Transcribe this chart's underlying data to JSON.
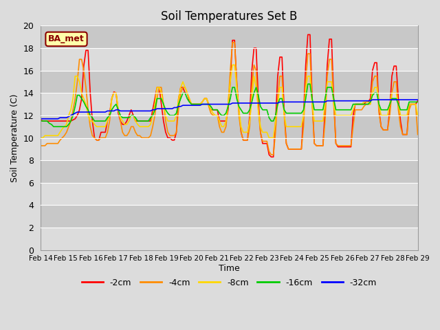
{
  "title": "Soil Temperatures Set B",
  "xlabel": "Time",
  "ylabel": "Soil Temperature (C)",
  "ylim": [
    0,
    20
  ],
  "yticks": [
    0,
    2,
    4,
    6,
    8,
    10,
    12,
    14,
    16,
    18,
    20
  ],
  "x_labels": [
    "Feb 14",
    "Feb 15",
    "Feb 16",
    "Feb 17",
    "Feb 18",
    "Feb 19",
    "Feb 20",
    "Feb 21",
    "Feb 22",
    "Feb 23",
    "Feb 24",
    "Feb 25",
    "Feb 26",
    "Feb 27",
    "Feb 28",
    "Feb 29"
  ],
  "annotation_text": "BA_met",
  "annotation_color": "#8B0000",
  "annotation_bg": "#FFFFAA",
  "colors": {
    "-2cm": "#FF0000",
    "-4cm": "#FF8C00",
    "-8cm": "#FFD700",
    "-16cm": "#00CC00",
    "-32cm": "#0000FF"
  },
  "legend_labels": [
    "-2cm",
    "-4cm",
    "-8cm",
    "-16cm",
    "-32cm"
  ],
  "bg_band_colors": [
    "#DCDCDC",
    "#C8C8C8"
  ],
  "data": {
    "-2cm": [
      11.6,
      11.5,
      11.5,
      11.5,
      11.5,
      11.5,
      11.5,
      11.5,
      11.5,
      11.5,
      11.5,
      11.5,
      11.5,
      11.5,
      11.5,
      11.6,
      11.7,
      12.0,
      12.5,
      13.5,
      16.4,
      17.8,
      17.8,
      14.0,
      11.5,
      10.0,
      9.8,
      9.8,
      10.5,
      10.5,
      10.5,
      11.5,
      12.2,
      13.5,
      14.1,
      14.0,
      12.2,
      11.5,
      11.2,
      11.2,
      11.5,
      12.0,
      12.5,
      12.0,
      11.5,
      11.5,
      11.5,
      11.5,
      11.5,
      11.5,
      11.5,
      11.5,
      12.5,
      13.5,
      14.5,
      14.5,
      13.0,
      11.5,
      10.5,
      10.0,
      10.0,
      9.8,
      9.8,
      10.5,
      13.5,
      14.5,
      14.5,
      14.0,
      14.0,
      13.3,
      13.0,
      13.0,
      13.0,
      13.0,
      13.0,
      13.2,
      13.5,
      13.5,
      13.0,
      12.5,
      12.5,
      12.5,
      12.5,
      11.5,
      11.5,
      11.5,
      11.5,
      12.5,
      15.0,
      18.7,
      18.7,
      15.0,
      12.5,
      10.5,
      9.8,
      9.8,
      9.8,
      12.0,
      16.0,
      18.0,
      18.0,
      13.5,
      10.5,
      9.5,
      9.5,
      9.5,
      8.5,
      8.3,
      8.3,
      11.5,
      15.5,
      17.2,
      17.2,
      12.5,
      9.5,
      9.0,
      9.0,
      9.0,
      9.0,
      9.0,
      9.0,
      9.0,
      12.0,
      16.5,
      19.2,
      19.2,
      13.5,
      9.5,
      9.3,
      9.3,
      9.3,
      9.3,
      12.5,
      16.5,
      18.8,
      18.8,
      13.5,
      9.5,
      9.2,
      9.2,
      9.2,
      9.2,
      9.2,
      9.2,
      9.2,
      12.0,
      13.0,
      13.0,
      13.0,
      13.0,
      13.0,
      13.2,
      13.2,
      13.5,
      16.0,
      16.7,
      16.7,
      12.5,
      11.0,
      10.7,
      10.7,
      10.7,
      12.5,
      15.5,
      16.4,
      16.4,
      13.5,
      11.5,
      10.3,
      10.3,
      10.3,
      13.0,
      13.0,
      13.0,
      13.0,
      13.3
    ],
    "-4cm": [
      9.3,
      9.3,
      9.3,
      9.5,
      9.5,
      9.5,
      9.5,
      9.5,
      9.5,
      9.8,
      10.0,
      10.2,
      10.5,
      11.0,
      11.5,
      12.5,
      13.5,
      15.0,
      17.0,
      17.0,
      16.0,
      14.5,
      12.5,
      11.0,
      10.2,
      10.0,
      9.8,
      9.8,
      10.0,
      10.0,
      10.0,
      10.5,
      11.5,
      13.5,
      14.0,
      14.0,
      12.5,
      11.5,
      10.5,
      10.2,
      10.2,
      10.5,
      11.0,
      11.0,
      10.5,
      10.2,
      10.2,
      10.0,
      10.0,
      10.0,
      10.0,
      10.2,
      11.0,
      12.0,
      13.5,
      14.5,
      14.5,
      13.0,
      11.5,
      10.5,
      10.2,
      10.2,
      10.2,
      10.5,
      12.5,
      14.0,
      14.5,
      14.5,
      14.0,
      13.5,
      13.0,
      13.0,
      13.0,
      13.0,
      13.0,
      13.2,
      13.5,
      13.5,
      12.8,
      12.2,
      12.0,
      12.0,
      12.0,
      11.0,
      10.5,
      10.5,
      11.0,
      13.0,
      16.0,
      18.5,
      18.5,
      15.0,
      12.0,
      10.5,
      9.8,
      9.8,
      9.8,
      11.0,
      14.5,
      16.5,
      16.0,
      12.5,
      10.5,
      9.7,
      9.7,
      9.7,
      8.8,
      8.5,
      8.5,
      10.5,
      13.5,
      15.5,
      15.5,
      12.0,
      9.5,
      9.0,
      9.0,
      9.0,
      9.0,
      9.0,
      9.0,
      9.0,
      11.0,
      15.0,
      17.5,
      17.5,
      13.0,
      9.5,
      9.3,
      9.3,
      9.3,
      9.3,
      11.5,
      15.5,
      17.0,
      17.0,
      13.0,
      9.5,
      9.3,
      9.3,
      9.3,
      9.3,
      9.3,
      9.3,
      9.3,
      11.0,
      12.5,
      12.5,
      12.5,
      12.5,
      12.8,
      13.0,
      13.0,
      13.0,
      15.0,
      15.5,
      15.5,
      12.2,
      11.0,
      10.7,
      10.7,
      10.7,
      12.0,
      14.0,
      15.0,
      15.0,
      12.5,
      11.0,
      10.3,
      10.3,
      10.3,
      12.5,
      13.0,
      13.0,
      13.0,
      10.3
    ],
    "-8cm": [
      10.0,
      10.0,
      10.2,
      10.2,
      10.2,
      10.2,
      10.2,
      10.2,
      10.2,
      10.5,
      10.8,
      11.0,
      11.2,
      12.0,
      12.5,
      13.5,
      15.5,
      15.5,
      15.0,
      14.0,
      13.5,
      13.0,
      12.0,
      11.5,
      11.5,
      11.2,
      11.0,
      11.0,
      11.0,
      11.0,
      11.0,
      11.5,
      12.0,
      13.5,
      14.0,
      14.0,
      12.5,
      11.8,
      11.5,
      11.2,
      11.2,
      11.5,
      12.0,
      12.0,
      11.5,
      11.2,
      11.0,
      11.0,
      11.0,
      11.0,
      11.0,
      11.2,
      12.0,
      13.0,
      14.5,
      14.5,
      14.0,
      13.0,
      12.0,
      11.5,
      11.5,
      11.5,
      11.5,
      12.0,
      13.5,
      14.5,
      15.0,
      14.5,
      14.0,
      13.5,
      13.0,
      13.0,
      13.0,
      13.0,
      13.0,
      13.2,
      13.5,
      13.5,
      13.0,
      12.5,
      12.2,
      12.0,
      12.0,
      11.5,
      11.0,
      11.0,
      11.5,
      13.0,
      15.0,
      16.5,
      16.5,
      14.5,
      12.5,
      11.0,
      10.5,
      10.5,
      10.5,
      11.5,
      13.5,
      15.5,
      14.5,
      12.5,
      11.0,
      10.5,
      10.5,
      10.5,
      10.0,
      10.0,
      10.0,
      11.5,
      13.0,
      14.5,
      14.5,
      12.0,
      11.0,
      11.0,
      11.0,
      11.0,
      11.0,
      11.0,
      11.0,
      11.0,
      12.0,
      14.5,
      15.5,
      15.5,
      13.0,
      11.5,
      11.5,
      11.5,
      11.5,
      11.5,
      13.0,
      15.0,
      15.0,
      15.0,
      13.0,
      12.0,
      12.0,
      12.0,
      12.0,
      12.0,
      12.0,
      12.0,
      12.0,
      12.5,
      13.0,
      13.0,
      13.0,
      13.0,
      13.2,
      13.2,
      13.2,
      13.0,
      14.0,
      14.5,
      14.5,
      13.0,
      12.0,
      12.0,
      12.0,
      12.0,
      13.0,
      14.0,
      14.0,
      14.0,
      13.0,
      12.0,
      12.0,
      12.0,
      12.0,
      13.0,
      13.0,
      13.0,
      13.0,
      12.0
    ],
    "-16cm": [
      11.5,
      11.5,
      11.5,
      11.5,
      11.3,
      11.2,
      11.0,
      11.0,
      11.0,
      11.0,
      11.0,
      11.0,
      11.0,
      11.2,
      11.5,
      12.0,
      12.8,
      13.8,
      13.8,
      13.5,
      13.2,
      12.8,
      12.5,
      12.0,
      11.8,
      11.5,
      11.5,
      11.5,
      11.5,
      11.5,
      11.5,
      11.8,
      12.0,
      12.5,
      12.8,
      13.0,
      12.5,
      12.0,
      11.8,
      11.8,
      11.8,
      11.8,
      12.0,
      12.0,
      11.8,
      11.5,
      11.5,
      11.5,
      11.5,
      11.5,
      11.5,
      11.8,
      12.0,
      12.5,
      13.5,
      13.5,
      13.5,
      13.0,
      12.5,
      12.2,
      12.0,
      12.0,
      12.0,
      12.2,
      13.0,
      13.5,
      14.0,
      14.0,
      13.5,
      13.2,
      13.0,
      13.0,
      13.0,
      13.0,
      13.0,
      13.0,
      13.0,
      13.0,
      13.0,
      12.8,
      12.5,
      12.5,
      12.5,
      12.2,
      12.0,
      12.0,
      12.2,
      12.8,
      13.5,
      14.5,
      14.5,
      13.5,
      12.8,
      12.5,
      12.2,
      12.2,
      12.2,
      12.5,
      13.2,
      14.0,
      14.5,
      13.8,
      12.8,
      12.5,
      12.5,
      12.5,
      11.8,
      11.5,
      11.5,
      12.0,
      13.0,
      13.5,
      13.5,
      12.5,
      12.2,
      12.2,
      12.2,
      12.2,
      12.2,
      12.2,
      12.2,
      12.2,
      12.5,
      13.5,
      14.8,
      14.8,
      13.5,
      12.5,
      12.5,
      12.5,
      12.5,
      12.5,
      13.5,
      14.5,
      14.5,
      14.5,
      13.5,
      12.5,
      12.5,
      12.5,
      12.5,
      12.5,
      12.5,
      12.5,
      12.5,
      13.0,
      13.0,
      13.0,
      13.0,
      13.0,
      13.0,
      13.0,
      13.0,
      13.2,
      13.8,
      14.0,
      14.0,
      13.0,
      12.5,
      12.5,
      12.5,
      12.5,
      13.0,
      13.5,
      13.5,
      13.5,
      13.0,
      12.5,
      12.5,
      12.5,
      12.5,
      13.2,
      13.2,
      13.2,
      13.2,
      13.2
    ],
    "-32cm": [
      11.7,
      11.7,
      11.7,
      11.7,
      11.7,
      11.7,
      11.7,
      11.7,
      11.7,
      11.8,
      11.8,
      11.8,
      11.8,
      11.9,
      12.0,
      12.1,
      12.2,
      12.3,
      12.3,
      12.3,
      12.3,
      12.3,
      12.3,
      12.3,
      12.3,
      12.3,
      12.3,
      12.3,
      12.3,
      12.3,
      12.3,
      12.4,
      12.4,
      12.4,
      12.4,
      12.5,
      12.5,
      12.4,
      12.4,
      12.4,
      12.4,
      12.4,
      12.4,
      12.4,
      12.4,
      12.4,
      12.4,
      12.4,
      12.4,
      12.4,
      12.4,
      12.4,
      12.5,
      12.5,
      12.6,
      12.6,
      12.6,
      12.6,
      12.6,
      12.6,
      12.6,
      12.6,
      12.7,
      12.7,
      12.8,
      12.8,
      12.9,
      12.9,
      12.9,
      12.9,
      12.9,
      12.9,
      12.9,
      12.9,
      12.9,
      13.0,
      13.0,
      13.0,
      13.0,
      13.0,
      13.0,
      13.0,
      13.0,
      13.0,
      13.0,
      13.0,
      13.0,
      13.0,
      13.0,
      13.1,
      13.1,
      13.1,
      13.1,
      13.1,
      13.1,
      13.1,
      13.1,
      13.1,
      13.1,
      13.1,
      13.1,
      13.1,
      13.1,
      13.1,
      13.1,
      13.1,
      13.1,
      13.1,
      13.1,
      13.1,
      13.1,
      13.2,
      13.2,
      13.2,
      13.2,
      13.2,
      13.2,
      13.2,
      13.2,
      13.2,
      13.2,
      13.2,
      13.2,
      13.2,
      13.2,
      13.2,
      13.2,
      13.2,
      13.2,
      13.2,
      13.2,
      13.2,
      13.2,
      13.3,
      13.3,
      13.3,
      13.3,
      13.3,
      13.3,
      13.3,
      13.3,
      13.3,
      13.3,
      13.3,
      13.3,
      13.3,
      13.3,
      13.3,
      13.3,
      13.3,
      13.3,
      13.3,
      13.3,
      13.3,
      13.4,
      13.4,
      13.4,
      13.4,
      13.4,
      13.4,
      13.4,
      13.4,
      13.4,
      13.4,
      13.4,
      13.4,
      13.4,
      13.4,
      13.4,
      13.4,
      13.4,
      13.4,
      13.4,
      13.4,
      13.4,
      13.4
    ]
  }
}
